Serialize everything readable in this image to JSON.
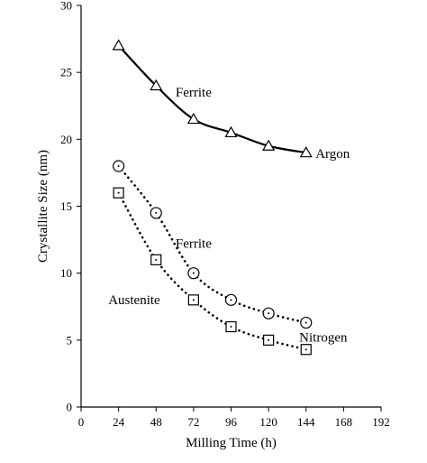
{
  "chart_data": {
    "type": "line",
    "xlabel": "Milling Time (h)",
    "ylabel": "Crystallite Size (nm)",
    "xlim": [
      0,
      192
    ],
    "ylim": [
      0,
      30
    ],
    "xticks": [
      "0",
      "24",
      "48",
      "72",
      "96",
      "120",
      "144",
      "168",
      "192"
    ],
    "yticks": [
      "0",
      "5",
      "10",
      "15",
      "20",
      "25",
      "30"
    ],
    "grid": false,
    "series": [
      {
        "marker": "triangle",
        "line": "solid",
        "x": [
          24,
          48,
          72,
          96,
          120,
          144
        ],
        "y": [
          27,
          24,
          21.5,
          20.5,
          19.5,
          19
        ]
      },
      {
        "marker": "circle",
        "line": "dotted",
        "x": [
          24,
          48,
          72,
          96,
          120,
          144
        ],
        "y": [
          18,
          14.5,
          10,
          8,
          7,
          6.3
        ]
      },
      {
        "marker": "square",
        "line": "dotted",
        "x": [
          24,
          48,
          72,
          96,
          120,
          144
        ],
        "y": [
          16,
          11,
          8,
          6,
          5,
          4.3
        ]
      }
    ],
    "annotations": [
      {
        "text": "Ferrite",
        "x": 72,
        "y": 23.2
      },
      {
        "text": "Argon",
        "x": 161,
        "y": 18.6
      },
      {
        "text": "Ferrite",
        "x": 72,
        "y": 11.9
      },
      {
        "text": "Austenite",
        "x": 34,
        "y": 7.7
      },
      {
        "text": "Nitrogen",
        "x": 155,
        "y": 4.9
      }
    ]
  }
}
